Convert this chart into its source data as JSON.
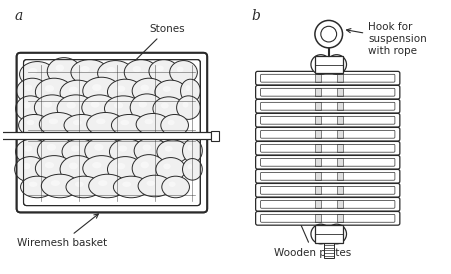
{
  "fig_width": 4.52,
  "fig_height": 2.74,
  "dpi": 100,
  "bg_color": "#ffffff",
  "line_color": "#2a2a2a",
  "label_a": "a",
  "label_b": "b",
  "label_stones": "Stones",
  "label_wiremesh": "Wiremesh basket",
  "label_hook": "Hook for\nsuspension\nwith rope",
  "label_wooden": "Wooden plates",
  "num_plates": 11,
  "stone_fill": "#f0f0f0"
}
